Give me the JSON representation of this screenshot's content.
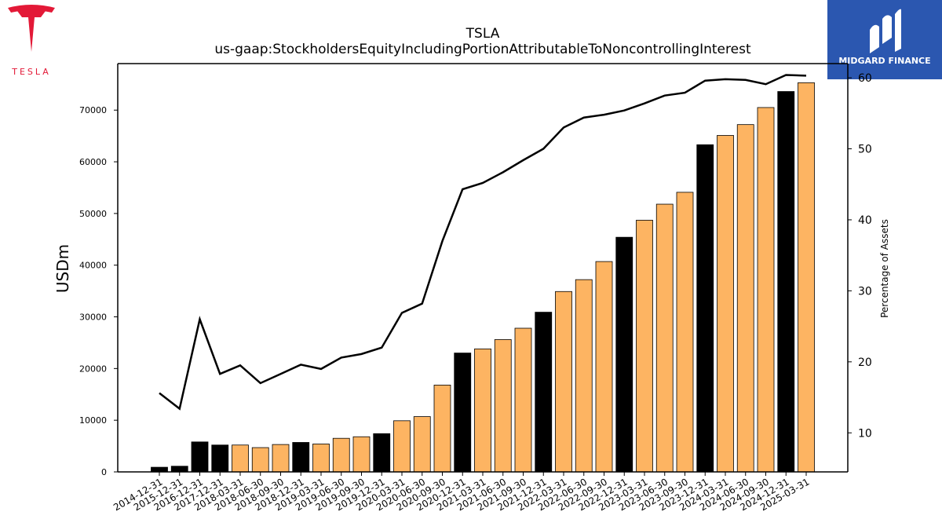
{
  "logo_left": {
    "wordmark": "TESLA"
  },
  "logo_right": {
    "wordmark": "MIDGARD FINANCE"
  },
  "colors": {
    "bar_dark": "#000000",
    "bar_light": "#fdb462",
    "line": "#000000",
    "brand_right": "#2b57b0",
    "brand_left": "#e31937"
  },
  "chart_data": {
    "type": "bar",
    "title": "TSLA",
    "subtitle": "us-gaap:StockholdersEquityIncludingPortionAttributableToNoncontrollingInterest",
    "ylabel": "USDm",
    "y2label": "Percentage of Assets",
    "ylim": [
      0,
      79000
    ],
    "y2lim": [
      4.5,
      62
    ],
    "yticks": [
      0,
      10000,
      20000,
      30000,
      40000,
      50000,
      60000,
      70000
    ],
    "y2ticks": [
      10,
      20,
      30,
      40,
      50,
      60
    ],
    "categories": [
      "2014-12-31",
      "2015-12-31",
      "2016-12-31",
      "2017-12-31",
      "2018-03-31",
      "2018-06-30",
      "2018-09-30",
      "2018-12-31",
      "2019-03-31",
      "2019-06-30",
      "2019-09-30",
      "2019-12-31",
      "2020-03-31",
      "2020-06-30",
      "2020-09-30",
      "2020-12-31",
      "2021-03-31",
      "2021-06-30",
      "2021-09-30",
      "2021-12-31",
      "2022-03-31",
      "2022-06-30",
      "2022-09-30",
      "2022-12-31",
      "2023-03-31",
      "2023-06-30",
      "2023-09-30",
      "2023-12-31",
      "2024-03-31",
      "2024-06-30",
      "2024-09-30",
      "2024-12-31",
      "2025-03-31"
    ],
    "series": [
      {
        "type": "bar",
        "values": [
          900,
          1100,
          5800,
          5200,
          5200,
          4700,
          5300,
          5700,
          5400,
          6500,
          6800,
          7400,
          9900,
          10700,
          16800,
          23000,
          23800,
          25600,
          27800,
          30900,
          34900,
          37200,
          40700,
          45400,
          48700,
          51800,
          54100,
          63300,
          65100,
          67200,
          70500,
          73600,
          75300
        ],
        "annual": [
          true,
          true,
          true,
          true,
          false,
          false,
          false,
          true,
          false,
          false,
          false,
          true,
          false,
          false,
          false,
          true,
          false,
          false,
          false,
          true,
          false,
          false,
          false,
          true,
          false,
          false,
          false,
          true,
          false,
          false,
          false,
          true,
          false
        ]
      },
      {
        "type": "line",
        "axis": "right",
        "values": [
          15.6,
          13.4,
          26.0,
          18.3,
          19.5,
          17.0,
          18.3,
          19.6,
          19.0,
          20.6,
          21.1,
          22.0,
          26.9,
          28.2,
          37.0,
          44.3,
          45.2,
          46.7,
          48.4,
          50.0,
          53.0,
          54.4,
          54.8,
          55.4,
          56.4,
          57.5,
          57.9,
          59.6,
          59.8,
          59.7,
          59.1,
          60.4,
          60.3
        ]
      }
    ]
  }
}
